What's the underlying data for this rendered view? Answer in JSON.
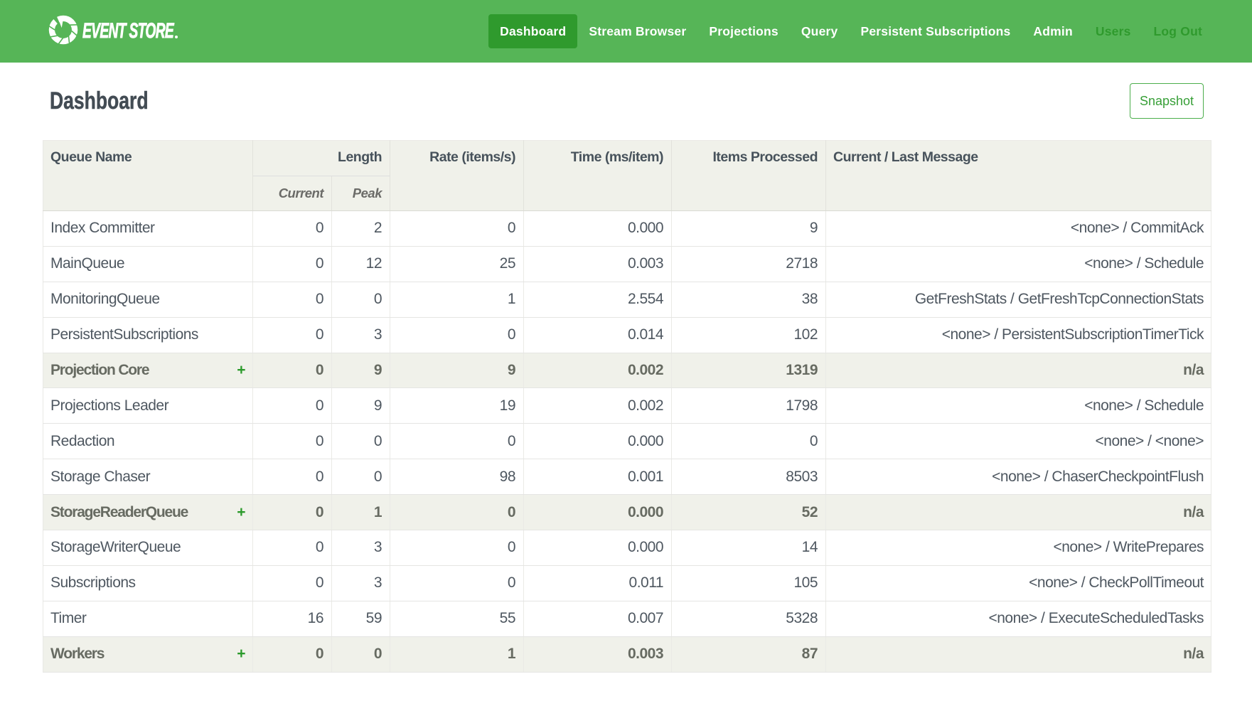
{
  "brand": {
    "name": "EVENT STORE",
    "logo_icon": "event-store-ring-logo"
  },
  "navbar": {
    "items": [
      {
        "label": "Dashboard",
        "state": "active"
      },
      {
        "label": "Stream Browser",
        "state": "normal"
      },
      {
        "label": "Projections",
        "state": "normal"
      },
      {
        "label": "Query",
        "state": "normal"
      },
      {
        "label": "Persistent Subscriptions",
        "state": "normal"
      },
      {
        "label": "Admin",
        "state": "normal"
      },
      {
        "label": "Users",
        "state": "muted"
      },
      {
        "label": "Log Out",
        "state": "muted"
      }
    ]
  },
  "page": {
    "title": "Dashboard",
    "snapshot_button": "Snapshot"
  },
  "table": {
    "headers": {
      "queue_name": "Queue Name",
      "length": "Length",
      "length_current": "Current",
      "length_peak": "Peak",
      "rate": "Rate (items/s)",
      "time": "Time (ms/item)",
      "items_processed": "Items Processed",
      "message": "Current / Last Message"
    },
    "rows": [
      {
        "name": "Index Committer",
        "group": false,
        "current": "0",
        "peak": "2",
        "rate": "0",
        "time": "0.000",
        "items": "9",
        "message": "<none> / CommitAck"
      },
      {
        "name": "MainQueue",
        "group": false,
        "current": "0",
        "peak": "12",
        "rate": "25",
        "time": "0.003",
        "items": "2718",
        "message": "<none> / Schedule"
      },
      {
        "name": "MonitoringQueue",
        "group": false,
        "current": "0",
        "peak": "0",
        "rate": "1",
        "time": "2.554",
        "items": "38",
        "message": "GetFreshStats / GetFreshTcpConnectionStats"
      },
      {
        "name": "PersistentSubscriptions",
        "group": false,
        "current": "0",
        "peak": "3",
        "rate": "0",
        "time": "0.014",
        "items": "102",
        "message": "<none> / PersistentSubscriptionTimerTick"
      },
      {
        "name": "Projection Core",
        "group": true,
        "current": "0",
        "peak": "9",
        "rate": "9",
        "time": "0.002",
        "items": "1319",
        "message": "n/a"
      },
      {
        "name": "Projections Leader",
        "group": false,
        "current": "0",
        "peak": "9",
        "rate": "19",
        "time": "0.002",
        "items": "1798",
        "message": "<none> / Schedule"
      },
      {
        "name": "Redaction",
        "group": false,
        "current": "0",
        "peak": "0",
        "rate": "0",
        "time": "0.000",
        "items": "0",
        "message": "<none> / <none>"
      },
      {
        "name": "Storage Chaser",
        "group": false,
        "current": "0",
        "peak": "0",
        "rate": "98",
        "time": "0.001",
        "items": "8503",
        "message": "<none> / ChaserCheckpointFlush"
      },
      {
        "name": "StorageReaderQueue",
        "group": true,
        "current": "0",
        "peak": "1",
        "rate": "0",
        "time": "0.000",
        "items": "52",
        "message": "n/a"
      },
      {
        "name": "StorageWriterQueue",
        "group": false,
        "current": "0",
        "peak": "3",
        "rate": "0",
        "time": "0.000",
        "items": "14",
        "message": "<none> / WritePrepares"
      },
      {
        "name": "Subscriptions",
        "group": false,
        "current": "0",
        "peak": "3",
        "rate": "0",
        "time": "0.011",
        "items": "105",
        "message": "<none> / CheckPollTimeout"
      },
      {
        "name": "Timer",
        "group": false,
        "current": "16",
        "peak": "59",
        "rate": "55",
        "time": "0.007",
        "items": "5328",
        "message": "<none> / ExecuteScheduledTasks"
      },
      {
        "name": "Workers",
        "group": true,
        "current": "0",
        "peak": "0",
        "rate": "1",
        "time": "0.003",
        "items": "87",
        "message": "n/a"
      }
    ],
    "group_expand_symbol": "+"
  },
  "colors": {
    "navbar_bg": "#56b557",
    "navbar_active_bg": "#2f9a2d",
    "navbar_muted_text": "#2f9a2d",
    "accent_green": "#379f37",
    "header_bg": "#f0f1ea",
    "group_row_bg": "#f0f1ea",
    "title_text": "#434c54",
    "table_text": "#4e5760"
  }
}
